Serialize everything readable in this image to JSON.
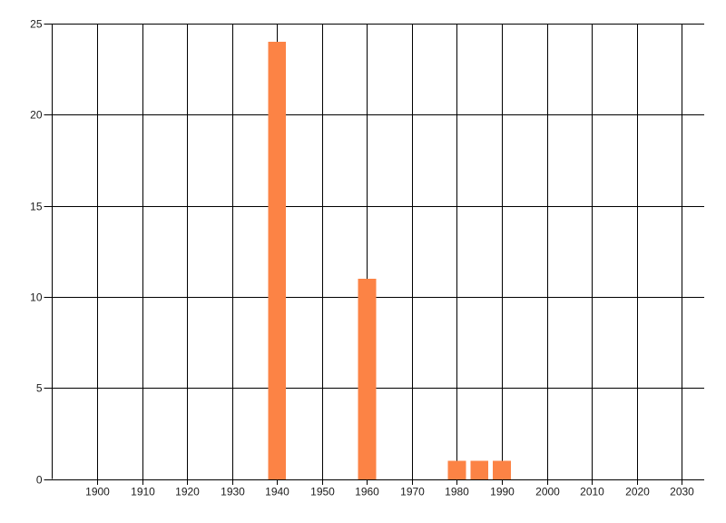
{
  "chart_data": {
    "type": "bar",
    "title": "",
    "xlabel": "",
    "ylabel": "",
    "x": [
      1940,
      1960,
      1980,
      1985,
      1990
    ],
    "values": [
      24,
      11,
      1,
      1,
      1
    ],
    "bar_width_years": 4,
    "xlim": [
      1890,
      2035
    ],
    "ylim": [
      0,
      25
    ],
    "x_ticks": [
      1900,
      1910,
      1920,
      1930,
      1940,
      1950,
      1960,
      1970,
      1980,
      1990,
      2000,
      2010,
      2020,
      2030
    ],
    "y_ticks": [
      0,
      5,
      10,
      15,
      20,
      25
    ],
    "grid": "both",
    "legend": "none",
    "bar_color": "#fc8345",
    "grid_color": "#000000",
    "text_color": "#1b1b1b",
    "background_color": "#ffffff"
  }
}
